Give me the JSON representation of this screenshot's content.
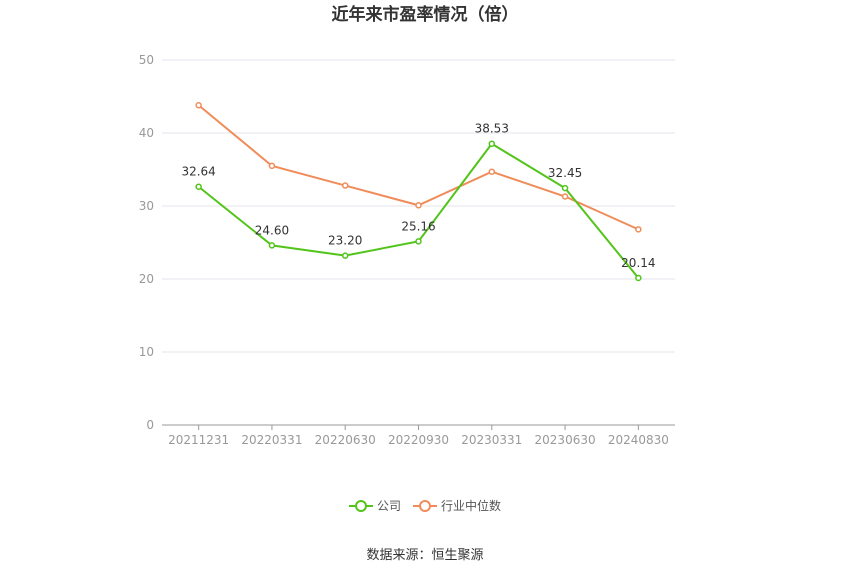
{
  "chart_data": {
    "type": "line",
    "title": "近年来市盈率情况（倍）",
    "categories": [
      "20211231",
      "20220331",
      "20220630",
      "20220930",
      "20230331",
      "20230630",
      "20240830"
    ],
    "ylim": [
      0,
      50
    ],
    "yticks": [
      0,
      10,
      20,
      30,
      40,
      50
    ],
    "grid": true,
    "legend_position": "bottom-center",
    "series": [
      {
        "name": "公司",
        "color": "#52c41a",
        "values": [
          32.64,
          24.6,
          23.2,
          25.16,
          38.53,
          32.45,
          20.14
        ],
        "labels": [
          "32.64",
          "24.60",
          "23.20",
          "25.16",
          "38.53",
          "32.45",
          "20.14"
        ]
      },
      {
        "name": "行业中位数",
        "color": "#f08c5a",
        "values": [
          43.8,
          35.5,
          32.8,
          30.1,
          34.7,
          31.3,
          26.8
        ]
      }
    ]
  },
  "source": "数据来源：恒生聚源"
}
